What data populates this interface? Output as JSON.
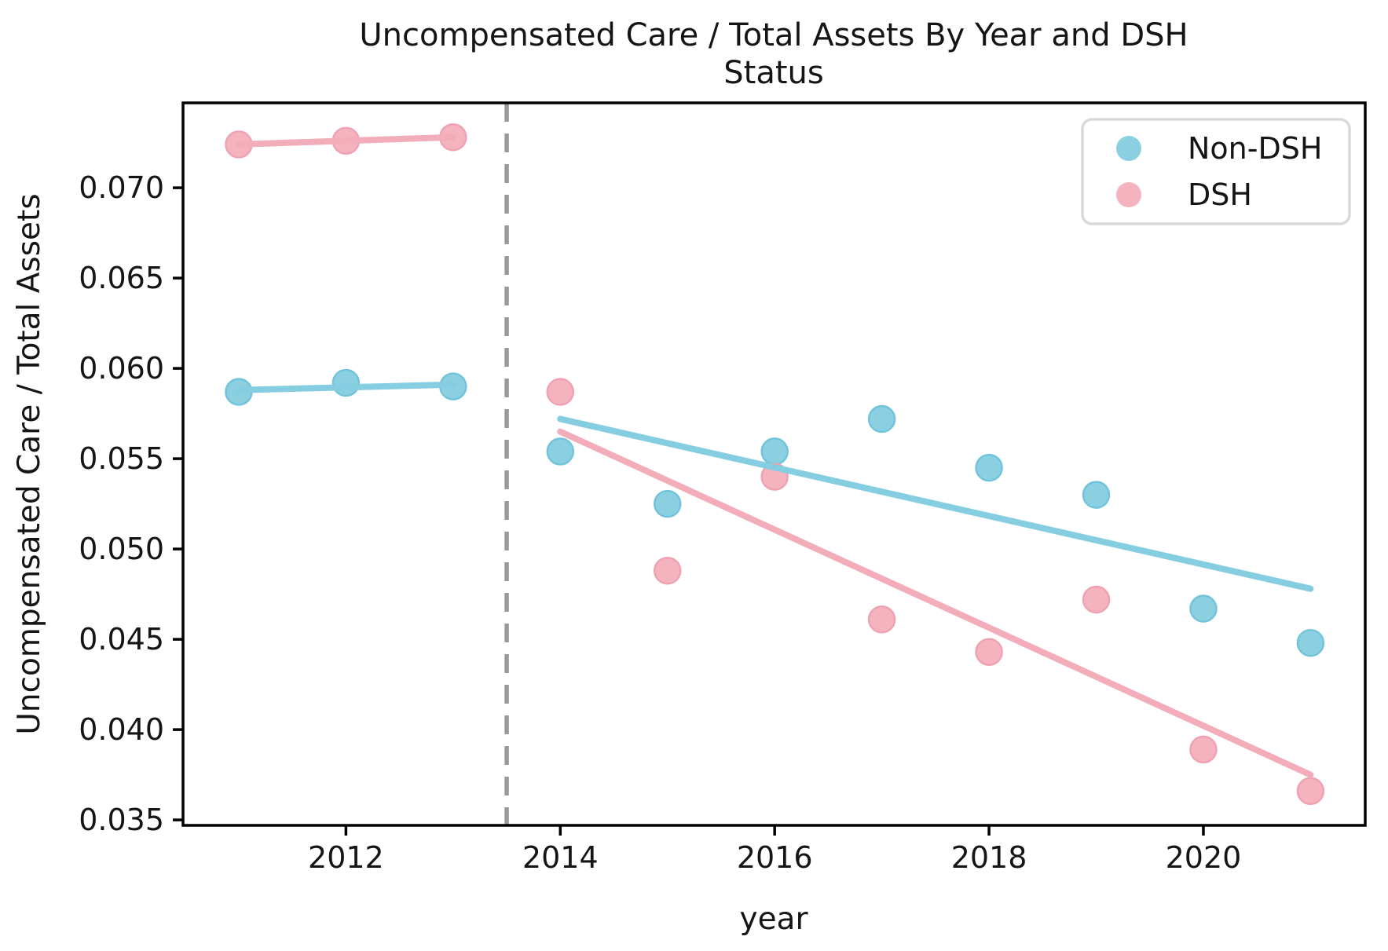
{
  "title": {
    "line1": "Uncompensated Care / Total Assets By Year and DSH",
    "line2": "Status"
  },
  "axes": {
    "xlabel": "year",
    "ylabel": "Uncompensated Care / Total Assets"
  },
  "chart_data": {
    "type": "scatter",
    "title": "Uncompensated Care / Total Assets By Year and DSH Status",
    "xlabel": "year",
    "ylabel": "Uncompensated Care / Total Assets",
    "grid": false,
    "legend_position": "upper right",
    "xlim": [
      2010.48,
      2021.51
    ],
    "ylim": [
      0.0347,
      0.0747
    ],
    "xticks": [
      2012,
      2014,
      2016,
      2018,
      2020
    ],
    "yticks": [
      0.035,
      0.04,
      0.045,
      0.05,
      0.055,
      0.06,
      0.065,
      0.07
    ],
    "vline": {
      "x": 2013.5,
      "color": "#999999",
      "style": "dashed"
    },
    "x": [
      2011,
      2012,
      2013,
      2014,
      2015,
      2016,
      2017,
      2018,
      2019,
      2020,
      2021
    ],
    "series": [
      {
        "name": "Non-DSH",
        "color": "#8BD0E1",
        "edge_color": "#73C3DA",
        "line_color": "#85CDE0",
        "values": [
          0.0587,
          0.0592,
          0.059,
          0.0554,
          0.0525,
          0.0554,
          0.0572,
          0.0545,
          0.053,
          0.0467,
          0.0448
        ]
      },
      {
        "name": "DSH",
        "color": "#F4B3BF",
        "edge_color": "#EFA2B2",
        "line_color": "#F2ACBA",
        "values": [
          0.0724,
          0.0726,
          0.0728,
          0.0587,
          0.0488,
          0.054,
          0.0461,
          0.0443,
          0.0472,
          0.0389,
          0.0366
        ]
      }
    ],
    "trend_lines": [
      {
        "series": 0,
        "from": [
          2011,
          0.0588
        ],
        "to": [
          2013,
          0.0591
        ]
      },
      {
        "series": 1,
        "from": [
          2011,
          0.0724
        ],
        "to": [
          2013,
          0.0728
        ]
      },
      {
        "series": 0,
        "from": [
          2014,
          0.0572
        ],
        "to": [
          2021,
          0.0478
        ]
      },
      {
        "series": 1,
        "from": [
          2014,
          0.0565
        ],
        "to": [
          2021,
          0.0375
        ]
      }
    ]
  },
  "style": {
    "spine_color": "#000000",
    "legend_border_color": "#D9D9D9"
  }
}
